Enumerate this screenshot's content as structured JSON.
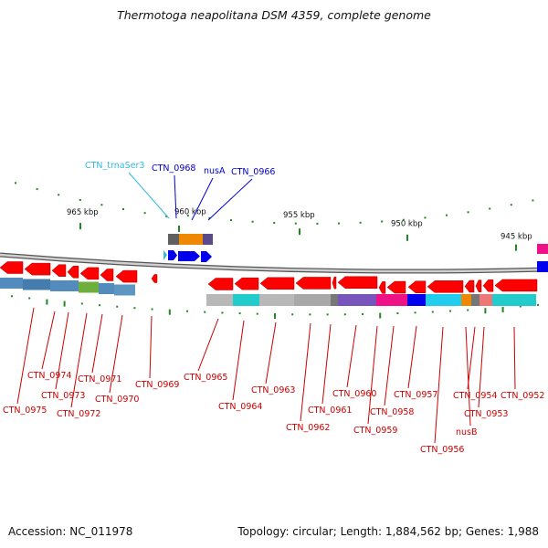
{
  "title": "Thermotoga neapolitana DSM 4359, complete genome",
  "accession_label": "Accession: NC_011978",
  "topology_label": "Topology: circular;",
  "length_label": "Length: 1,884,562 bp;",
  "genes_label": "Genes: 1,988",
  "scale": {
    "ticks": [
      {
        "label": "965 kbp"
      },
      {
        "label": "960 kbp"
      },
      {
        "label": "955 kbp"
      },
      {
        "label": "950 kbp"
      },
      {
        "label": "945 kbp"
      }
    ]
  },
  "colors": {
    "forward_gene": "#ff0000",
    "label_red": "#cc0000",
    "label_blue": "#0000cc",
    "label_cyan": "#33bbdd",
    "backbone": "#888888"
  },
  "top_labels": [
    {
      "text": "CTN_trnaSer3"
    },
    {
      "text": "CTN_0968"
    },
    {
      "text": "nusA"
    },
    {
      "text": "CTN_0966"
    }
  ],
  "bottom_labels": [
    {
      "text": "CTN_0975"
    },
    {
      "text": "CTN_0974"
    },
    {
      "text": "CTN_0973"
    },
    {
      "text": "CTN_0972"
    },
    {
      "text": "CTN_0971"
    },
    {
      "text": "CTN_0970"
    },
    {
      "text": "CTN_0969"
    },
    {
      "text": "CTN_0965"
    },
    {
      "text": "CTN_0964"
    },
    {
      "text": "CTN_0963"
    },
    {
      "text": "CTN_0962"
    },
    {
      "text": "CTN_0961"
    },
    {
      "text": "CTN_0960"
    },
    {
      "text": "CTN_0959"
    },
    {
      "text": "CTN_0958"
    },
    {
      "text": "CTN_0957"
    },
    {
      "text": "CTN_0956"
    },
    {
      "text": "nusB"
    },
    {
      "text": "CTN_0954"
    },
    {
      "text": "CTN_0953"
    },
    {
      "text": "CTN_0952"
    }
  ]
}
